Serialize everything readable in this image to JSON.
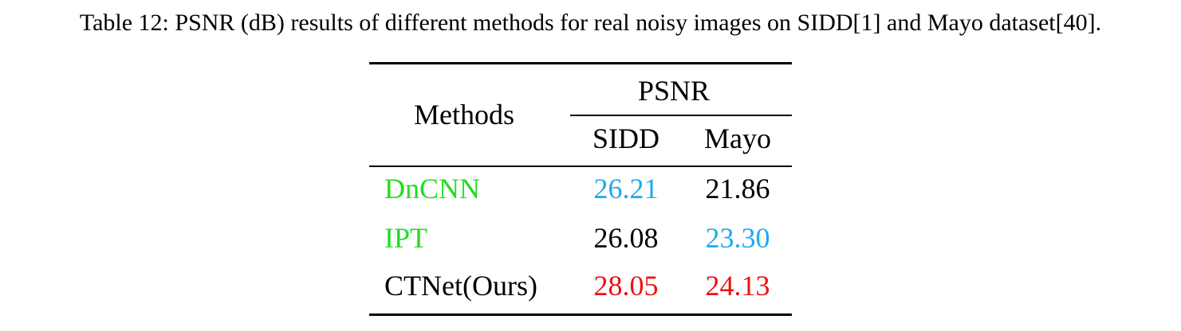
{
  "caption": "Table 12: PSNR (dB) results of different methods for real noisy images on SIDD[1] and Mayo dataset[40].",
  "table": {
    "header": {
      "methods": "Methods",
      "group": "PSNR",
      "col1": "SIDD",
      "col2": "Mayo"
    },
    "rows": [
      {
        "method": "DnCNN",
        "method_color": "#22dd22",
        "sidd": "26.21",
        "sidd_color": "#1eaaee",
        "mayo": "21.86",
        "mayo_color": "#000000"
      },
      {
        "method": "IPT",
        "method_color": "#22dd22",
        "sidd": "26.08",
        "sidd_color": "#000000",
        "mayo": "23.30",
        "mayo_color": "#1eaaee"
      },
      {
        "method": "CTNet(Ours)",
        "method_color": "#000000",
        "sidd": "28.05",
        "sidd_color": "#ee1111",
        "mayo": "24.13",
        "mayo_color": "#ee1111"
      }
    ]
  }
}
